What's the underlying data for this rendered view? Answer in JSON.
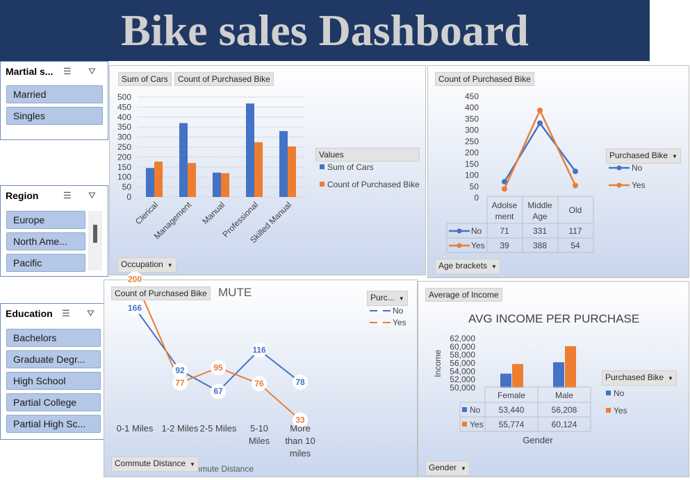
{
  "dashboard_title": "Bike sales Dashboard",
  "colors": {
    "blue": "#4472c4",
    "orange": "#ed7d31",
    "title_bg": "#203864"
  },
  "slicers": {
    "marital": {
      "title": "Martial s...",
      "items": [
        "Married",
        "Singles"
      ]
    },
    "region": {
      "title": "Region",
      "items": [
        "Europe",
        "North Ame...",
        "Pacific"
      ]
    },
    "education": {
      "title": "Education",
      "items": [
        "Bachelors",
        "Graduate Degr...",
        "High School",
        "Partial College",
        "Partial High Sc..."
      ]
    }
  },
  "occupation_chart": {
    "chips": [
      "Sum of Cars",
      "Count of Purchased Bike"
    ],
    "legend_title": "Values",
    "field_button": "Occupation",
    "chart_data": {
      "type": "bar",
      "categories": [
        "Clerical",
        "Management",
        "Manual",
        "Professional",
        "Skilled Manual"
      ],
      "series": [
        {
          "name": "Sum of Cars",
          "values": [
            145,
            370,
            122,
            468,
            330
          ]
        },
        {
          "name": "Count of Purchased Bike",
          "values": [
            177,
            170,
            119,
            274,
            253
          ]
        }
      ],
      "ylim": [
        0,
        500
      ],
      "yticks": [
        0,
        50,
        100,
        150,
        200,
        250,
        300,
        350,
        400,
        450,
        500
      ]
    }
  },
  "age_chart": {
    "chip": "Count of Purchased Bike",
    "legend_title": "Purchased Bike",
    "field_button": "Age brackets",
    "table_headers": [
      [
        "Adolse",
        "ment"
      ],
      [
        "Middle",
        "Age"
      ],
      [
        "Old"
      ]
    ],
    "chart_data": {
      "type": "line",
      "categories": [
        "Adolsement",
        "Middle Age",
        "Old"
      ],
      "series": [
        {
          "name": "No",
          "values": [
            71,
            331,
            117
          ]
        },
        {
          "name": "Yes",
          "values": [
            39,
            388,
            54
          ]
        }
      ],
      "ylim": [
        0,
        450
      ],
      "yticks": [
        0,
        50,
        100,
        150,
        200,
        250,
        300,
        350,
        400,
        450
      ]
    }
  },
  "commute_chart": {
    "chip": "Count of Purchased Bike",
    "title_fragment": "MUTE",
    "legend_title": "Purc...",
    "field_button": "Commute Distance",
    "axis_title": "Commute Distance",
    "chart_data": {
      "type": "line",
      "categories": [
        "0-1 Miles",
        "1-2 Miles",
        "2-5 Miles",
        "5-10 Miles",
        "More than 10 miles"
      ],
      "category_lines": [
        [
          "0-1 Miles"
        ],
        [
          "1-2 Miles"
        ],
        [
          "2-5 Miles"
        ],
        [
          "5-10",
          "Miles"
        ],
        [
          "More",
          "than 10",
          "miles"
        ]
      ],
      "series": [
        {
          "name": "No",
          "values": [
            166,
            92,
            67,
            116,
            78
          ]
        },
        {
          "name": "Yes",
          "values": [
            200,
            77,
            95,
            76,
            33
          ]
        }
      ]
    }
  },
  "income_chart": {
    "chip": "Average of Income",
    "title": "AVG INCOME PER PURCHASE",
    "ylabel": "Income",
    "xlabel": "Gender",
    "legend_title": "Purchased Bike",
    "field_button": "Gender",
    "chart_data": {
      "type": "bar",
      "categories": [
        "Female",
        "Male"
      ],
      "series": [
        {
          "name": "No",
          "values": [
            53440,
            56208
          ],
          "labels": [
            "53,440",
            "56,208"
          ]
        },
        {
          "name": "Yes",
          "values": [
            55774,
            60124
          ],
          "labels": [
            "55,774",
            "60,124"
          ]
        }
      ],
      "ylim": [
        50000,
        62000
      ],
      "yticks": [
        "50,000",
        "52,000",
        "54,000",
        "56,000",
        "58,000",
        "60,000",
        "62,000"
      ]
    }
  }
}
